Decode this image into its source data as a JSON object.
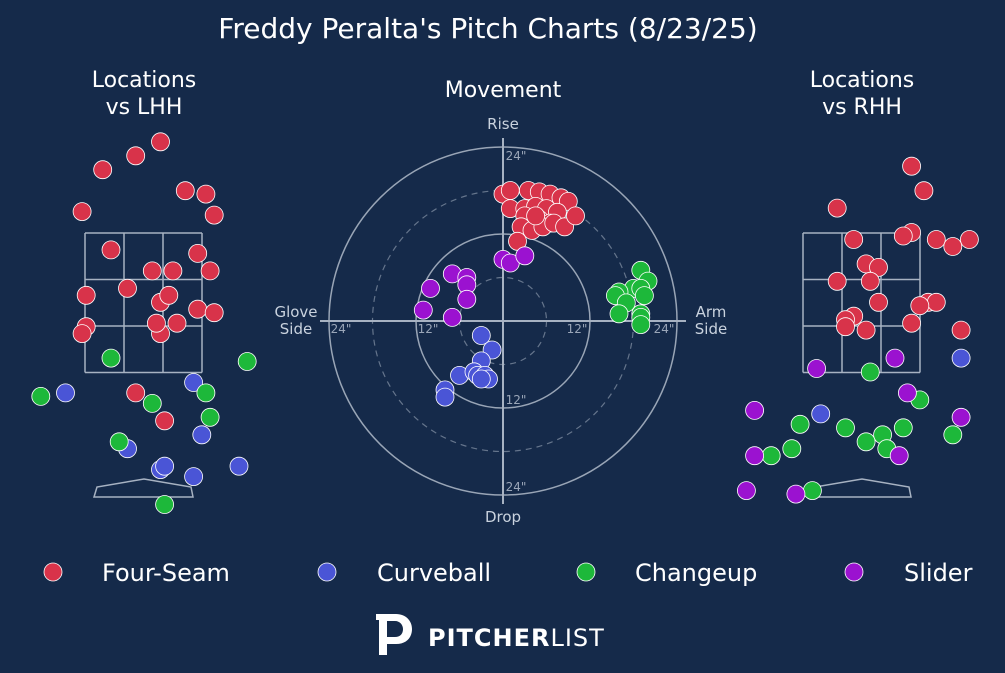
{
  "title": "Freddy Peralta's Pitch Charts (8/23/25)",
  "colors": {
    "background": "#152a4a",
    "four_seam": "#d8334a",
    "curveball": "#4a55d6",
    "changeup": "#1db83a",
    "slider": "#9b12d0",
    "guide": "#a7b2c2"
  },
  "chart_data": [
    {
      "type": "scatter",
      "title": "Locations\nvs LHH",
      "title_lines": [
        "Locations",
        "vs LHH"
      ],
      "series": [
        {
          "name": "Four-Seam",
          "points": [
            [
              0.2,
              4.8
            ],
            [
              -0.5,
              4.4
            ],
            [
              -0.1,
              4.6
            ],
            [
              0.5,
              4.1
            ],
            [
              0.75,
              4.05
            ],
            [
              -0.75,
              3.8
            ],
            [
              0.85,
              3.75
            ],
            [
              1.5,
              3.5
            ],
            [
              1.95,
              3.25
            ],
            [
              -0.4,
              3.25
            ],
            [
              0.65,
              3.2
            ],
            [
              0.35,
              2.95
            ],
            [
              0.8,
              2.95
            ],
            [
              0.1,
              2.95
            ],
            [
              -0.7,
              2.6
            ],
            [
              -0.2,
              2.7
            ],
            [
              0.2,
              2.5
            ],
            [
              0.3,
              2.6
            ],
            [
              0.65,
              2.4
            ],
            [
              0.85,
              2.35
            ],
            [
              2.2,
              2.3
            ],
            [
              -0.7,
              2.15
            ],
            [
              -0.75,
              2.05
            ],
            [
              0.2,
              2.05
            ],
            [
              0.4,
              2.2
            ],
            [
              0.15,
              2.2
            ],
            [
              1.4,
              1.9
            ],
            [
              -0.1,
              1.2
            ],
            [
              0.25,
              0.8
            ]
          ]
        },
        {
          "name": "Curveball",
          "points": [
            [
              -0.95,
              1.2
            ],
            [
              0.6,
              1.35
            ],
            [
              0.7,
              0.6
            ],
            [
              -0.2,
              0.4
            ],
            [
              1.65,
              0.45
            ],
            [
              2.2,
              0.5
            ],
            [
              0.2,
              0.1
            ],
            [
              0.25,
              0.15
            ],
            [
              0.6,
              0.0
            ],
            [
              1.15,
              0.15
            ]
          ]
        },
        {
          "name": "Changeup",
          "points": [
            [
              -0.4,
              1.7
            ],
            [
              1.25,
              1.65
            ],
            [
              -1.25,
              1.15
            ],
            [
              0.75,
              1.2
            ],
            [
              0.1,
              1.05
            ],
            [
              0.8,
              0.85
            ],
            [
              -0.3,
              0.5
            ],
            [
              2.35,
              0.7
            ],
            [
              0.25,
              -0.4
            ]
          ]
        },
        {
          "name": "Slider",
          "points": []
        }
      ]
    },
    {
      "type": "scatter",
      "title": "Movement",
      "axis_labels": {
        "top": "Rise",
        "bottom": "Drop",
        "left": "Glove Side",
        "right": "Arm Side"
      },
      "left_label_lines": [
        "Glove",
        "Side"
      ],
      "right_label_lines": [
        "Arm",
        "Side"
      ],
      "ring_labels": [
        "12\"",
        "24\""
      ],
      "rings": [
        6,
        12,
        18,
        24
      ],
      "series": [
        {
          "name": "Four-Seam",
          "points": [
            [
              0,
              17.5
            ],
            [
              1,
              18
            ],
            [
              3.5,
              18
            ],
            [
              5,
              17.8
            ],
            [
              6.5,
              17.5
            ],
            [
              8,
              17
            ],
            [
              9,
              16.5
            ],
            [
              1,
              15.5
            ],
            [
              3,
              15.5
            ],
            [
              4.5,
              15.8
            ],
            [
              6,
              15.5
            ],
            [
              7.5,
              15
            ],
            [
              3,
              14.5
            ],
            [
              5,
              14
            ],
            [
              6.5,
              13.5
            ],
            [
              2.5,
              13
            ],
            [
              4,
              12.5
            ],
            [
              5.5,
              13
            ],
            [
              7,
              13.5
            ],
            [
              8.5,
              13
            ],
            [
              10,
              14.5
            ],
            [
              4.5,
              14.5
            ],
            [
              2,
              11
            ]
          ]
        },
        {
          "name": "Curveball",
          "points": [
            [
              -3,
              -2
            ],
            [
              -1.5,
              -4
            ],
            [
              -3,
              -5.5
            ],
            [
              -6,
              -7.5
            ],
            [
              -4,
              -7
            ],
            [
              -3.5,
              -7.5
            ],
            [
              -2.5,
              -7.5
            ],
            [
              -2,
              -8
            ],
            [
              -3,
              -8
            ],
            [
              -8,
              -9.5
            ],
            [
              -8,
              -10.5
            ]
          ]
        },
        {
          "name": "Changeup",
          "points": [
            [
              19,
              7
            ],
            [
              20,
              5.5
            ],
            [
              18,
              4.5
            ],
            [
              16,
              4
            ],
            [
              15.5,
              3.5
            ],
            [
              19,
              4.5
            ],
            [
              19.5,
              3.5
            ],
            [
              17,
              2.5
            ],
            [
              16,
              1
            ],
            [
              19,
              1
            ],
            [
              19,
              0.5
            ],
            [
              19,
              -0.5
            ]
          ]
        },
        {
          "name": "Slider",
          "points": [
            [
              -7,
              6.5
            ],
            [
              -5,
              6
            ],
            [
              -5,
              5
            ],
            [
              -10,
              4.5
            ],
            [
              -5,
              3
            ],
            [
              -11,
              1.5
            ],
            [
              -7,
              0.5
            ],
            [
              0,
              8.5
            ],
            [
              1,
              8
            ],
            [
              3,
              9
            ]
          ]
        }
      ]
    },
    {
      "type": "scatter",
      "title": "Locations\nvs RHH",
      "title_lines": [
        "Locations",
        "vs RHH"
      ],
      "series": [
        {
          "name": "Four-Seam",
          "points": [
            [
              0.6,
              4.45
            ],
            [
              0.75,
              4.1
            ],
            [
              -0.3,
              3.85
            ],
            [
              0.6,
              3.5
            ],
            [
              0.5,
              3.45
            ],
            [
              0.9,
              3.4
            ],
            [
              1.3,
              3.4
            ],
            [
              1.1,
              3.3
            ],
            [
              -0.1,
              3.4
            ],
            [
              1.95,
              3.35
            ],
            [
              0.05,
              3.05
            ],
            [
              0.2,
              3.0
            ],
            [
              0.1,
              2.8
            ],
            [
              -0.3,
              2.8
            ],
            [
              0.8,
              2.5
            ],
            [
              0.9,
              2.5
            ],
            [
              0.7,
              2.45
            ],
            [
              0.2,
              2.5
            ],
            [
              -0.1,
              2.3
            ],
            [
              -0.2,
              2.25
            ],
            [
              0.6,
              2.2
            ],
            [
              1.2,
              2.1
            ],
            [
              -0.2,
              2.15
            ],
            [
              0.05,
              2.1
            ]
          ]
        },
        {
          "name": "Curveball",
          "points": [
            [
              1.2,
              1.7
            ],
            [
              -0.5,
              0.9
            ]
          ]
        },
        {
          "name": "Changeup",
          "points": [
            [
              0.1,
              1.5
            ],
            [
              0.7,
              1.1
            ],
            [
              -0.2,
              0.7
            ],
            [
              -0.75,
              0.75
            ],
            [
              0.25,
              0.6
            ],
            [
              0.5,
              0.7
            ],
            [
              1.1,
              0.6
            ],
            [
              -1.1,
              0.3
            ],
            [
              -0.85,
              0.4
            ],
            [
              0.05,
              0.5
            ],
            [
              0.3,
              0.4
            ],
            [
              -0.6,
              -0.2
            ]
          ]
        },
        {
          "name": "Slider",
          "points": [
            [
              -0.55,
              1.55
            ],
            [
              0.4,
              1.7
            ],
            [
              0.55,
              1.2
            ],
            [
              -1.3,
              0.95
            ],
            [
              -1.4,
              -0.2
            ],
            [
              -0.8,
              -0.25
            ],
            [
              1.2,
              0.85
            ],
            [
              0.45,
              0.3
            ],
            [
              -1.3,
              0.3
            ]
          ]
        }
      ]
    }
  ],
  "legend": [
    {
      "name": "Four-Seam",
      "color": "#d8334a"
    },
    {
      "name": "Curveball",
      "color": "#4a55d6"
    },
    {
      "name": "Changeup",
      "color": "#1db83a"
    },
    {
      "name": "Slider",
      "color": "#9b12d0"
    }
  ],
  "logo": {
    "word_bold": "PITCHER",
    "word_light": "LIST"
  }
}
